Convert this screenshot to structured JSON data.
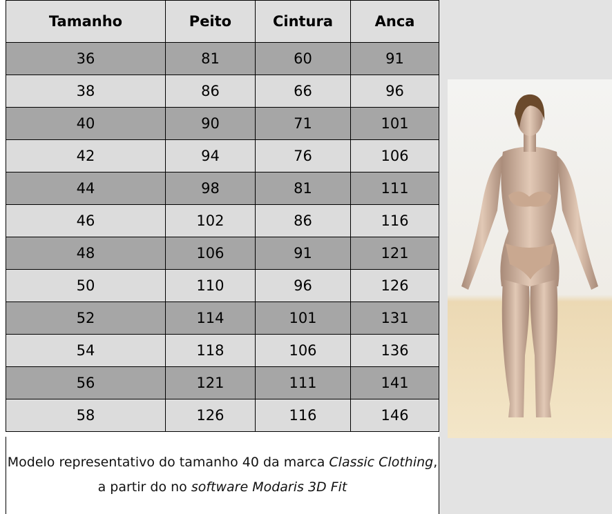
{
  "table": {
    "header": [
      "Tamanho",
      "Peito",
      "Cintura",
      "Anca"
    ],
    "rows": [
      [
        36,
        81,
        60,
        91
      ],
      [
        38,
        86,
        66,
        96
      ],
      [
        40,
        90,
        71,
        101
      ],
      [
        42,
        94,
        76,
        106
      ],
      [
        44,
        98,
        81,
        111
      ],
      [
        46,
        102,
        86,
        116
      ],
      [
        48,
        106,
        91,
        121
      ],
      [
        50,
        110,
        96,
        126
      ],
      [
        52,
        114,
        101,
        131
      ],
      [
        54,
        118,
        106,
        136
      ],
      [
        56,
        121,
        111,
        141
      ],
      [
        58,
        126,
        116,
        146
      ]
    ],
    "caption": [
      "Modelo representativo do tamanho 40 da marca ",
      "Classic Clothing",
      ", a partir do no ",
      "software Modaris 3D Fit"
    ]
  }
}
